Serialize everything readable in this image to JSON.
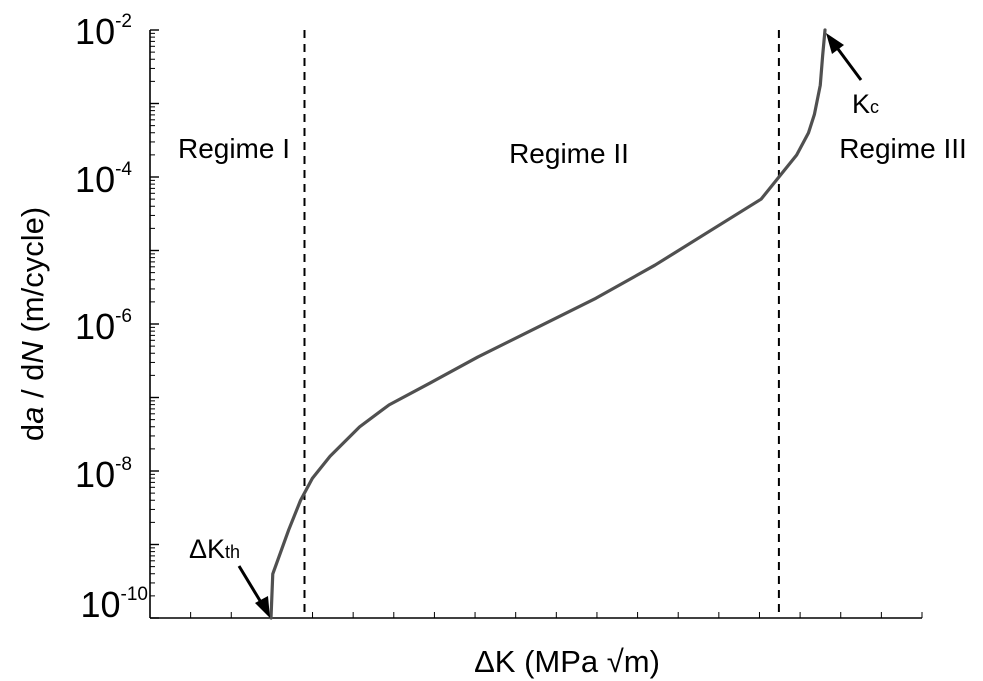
{
  "chart_data": {
    "type": "line",
    "title": "",
    "xlabel": "ΔK (MPa √m)",
    "ylabel": {
      "prefix": "d",
      "a": "a",
      "mid": " / d",
      "N": "N",
      "unit": " (m/cycle)"
    },
    "y_scale": "log",
    "ylim": [
      1e-10,
      0.01
    ],
    "x_ticks_labeled": false,
    "y_ticks": [
      {
        "base": "10",
        "exp": "-2",
        "value": 0.01
      },
      {
        "base": "10",
        "exp": "-4",
        "value": 0.0001
      },
      {
        "base": "10",
        "exp": "-6",
        "value": 1e-06
      },
      {
        "base": "10",
        "exp": "-8",
        "value": 1e-08
      },
      {
        "base": "10",
        "exp": "-10",
        "value": 1e-10
      }
    ],
    "regime_boundaries_log_y": [
      -8.3,
      -4.0
    ],
    "regions": [
      {
        "label": "Regime I"
      },
      {
        "label": "Regime II"
      },
      {
        "label": "Regime III"
      }
    ],
    "annotations": [
      {
        "main": "ΔK",
        "sub": "th",
        "at": "threshold"
      },
      {
        "main": "K",
        "sub": "c",
        "at": "critical"
      }
    ],
    "series": [
      {
        "color": "#505050",
        "points_log_y": [
          [
            0.0,
            -10.0
          ],
          [
            0.3,
            -9.4
          ],
          [
            3.0,
            -8.8
          ],
          [
            5.0,
            -8.4
          ],
          [
            7.0,
            -8.1
          ],
          [
            10.0,
            -7.8
          ],
          [
            15.0,
            -7.4
          ],
          [
            20.0,
            -7.1
          ],
          [
            27.0,
            -6.8
          ],
          [
            35.0,
            -6.45
          ],
          [
            45.0,
            -6.05
          ],
          [
            55.0,
            -5.65
          ],
          [
            65.0,
            -5.2
          ],
          [
            75.0,
            -4.7
          ],
          [
            83.0,
            -4.3
          ],
          [
            86.0,
            -4.0
          ],
          [
            89.0,
            -3.7
          ],
          [
            91.0,
            -3.4
          ],
          [
            92.0,
            -3.15
          ],
          [
            93.0,
            -2.75
          ],
          [
            93.4,
            -2.35
          ],
          [
            93.8,
            -2.0
          ]
        ]
      }
    ]
  }
}
